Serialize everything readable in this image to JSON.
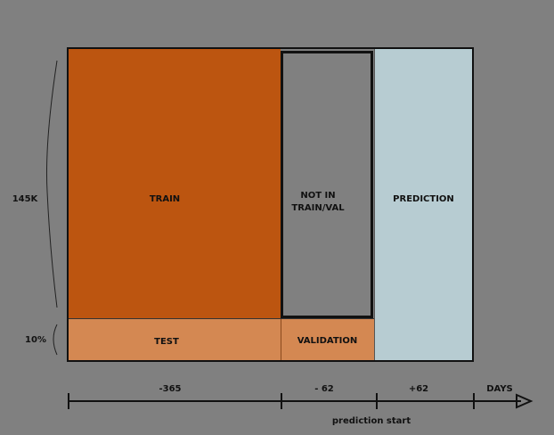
{
  "diagram": {
    "regions": {
      "train": {
        "label": "TRAIN",
        "color": "#bc5510"
      },
      "not_in_train_val": {
        "label": "NOT IN\nTRAIN/VAL",
        "color": "#808080"
      },
      "prediction": {
        "label": "PREDICTION",
        "color": "#b7ccd2"
      },
      "test": {
        "label": "TEST",
        "color": "#d48852"
      },
      "validation": {
        "label": "VALIDATION",
        "color": "#d48852"
      }
    },
    "side_labels": {
      "rows": "145K",
      "test_share": "10%"
    },
    "timeline": {
      "tick_minus_365": "-365",
      "tick_minus_62": "- 62",
      "tick_plus_62": "+62",
      "axis_label": "DAYS",
      "marker_label": "prediction start"
    }
  }
}
